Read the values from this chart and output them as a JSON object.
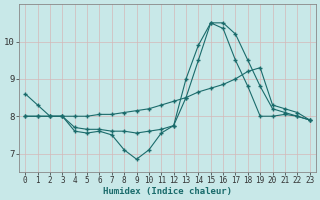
{
  "xlabel": "Humidex (Indice chaleur)",
  "bg_color": "#c8e8e8",
  "grid_color": "#b0d8d8",
  "line_color": "#1a6b6b",
  "xlim": [
    -0.5,
    23.5
  ],
  "ylim": [
    6.5,
    11.0
  ],
  "yticks": [
    7,
    8,
    9,
    10
  ],
  "xticks": [
    0,
    1,
    2,
    3,
    4,
    5,
    6,
    7,
    8,
    9,
    10,
    11,
    12,
    13,
    14,
    15,
    16,
    17,
    18,
    19,
    20,
    21,
    22,
    23
  ],
  "line1_x": [
    0,
    1,
    2,
    3,
    4,
    5,
    6,
    7,
    8,
    9,
    10,
    11,
    12,
    13,
    14,
    15,
    16,
    17,
    18,
    19,
    20,
    21,
    22,
    23
  ],
  "line1_y": [
    8.6,
    8.3,
    8.0,
    8.0,
    7.6,
    7.55,
    7.6,
    7.5,
    7.1,
    6.85,
    7.1,
    7.55,
    7.75,
    9.0,
    9.9,
    10.5,
    10.5,
    10.2,
    9.5,
    8.8,
    8.2,
    8.1,
    8.0,
    7.9
  ],
  "line2_x": [
    0,
    1,
    2,
    3,
    4,
    5,
    6,
    7,
    8,
    9,
    10,
    11,
    12,
    13,
    14,
    15,
    16,
    17,
    18,
    19,
    20,
    21,
    22,
    23
  ],
  "line2_y": [
    8.0,
    8.0,
    8.0,
    8.0,
    8.0,
    8.0,
    8.05,
    8.05,
    8.1,
    8.15,
    8.2,
    8.3,
    8.4,
    8.5,
    8.65,
    8.75,
    8.85,
    9.0,
    9.2,
    9.3,
    8.3,
    8.2,
    8.1,
    7.9
  ],
  "line3_x": [
    0,
    1,
    2,
    3,
    4,
    5,
    6,
    7,
    8,
    9,
    10,
    11,
    12,
    13,
    14,
    15,
    16,
    17,
    18,
    19,
    20,
    21,
    22,
    23
  ],
  "line3_y": [
    8.0,
    8.0,
    8.0,
    8.0,
    7.7,
    7.65,
    7.65,
    7.6,
    7.6,
    7.55,
    7.6,
    7.65,
    7.75,
    8.5,
    9.5,
    10.5,
    10.35,
    9.5,
    8.8,
    8.0,
    8.0,
    8.05,
    8.0,
    7.9
  ]
}
